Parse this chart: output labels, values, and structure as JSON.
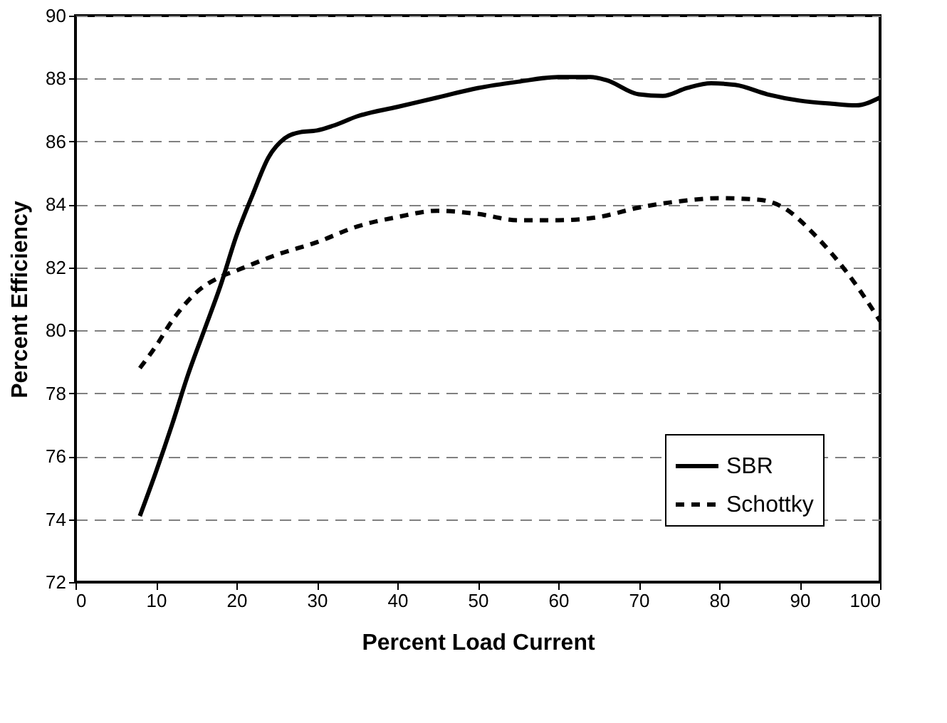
{
  "chart_data": {
    "type": "line",
    "xlabel": "Percent Load Current",
    "ylabel": "Percent Efficiency",
    "xlim": [
      0,
      100
    ],
    "xticks": [
      0,
      10,
      20,
      30,
      40,
      50,
      60,
      70,
      80,
      90,
      100
    ],
    "ylim": [
      72,
      90
    ],
    "yticks": [
      72,
      74,
      76,
      78,
      80,
      82,
      84,
      86,
      88,
      90
    ],
    "grid": "y",
    "legend": "bottom right",
    "marker": "none",
    "series": [
      {
        "name": "SBR",
        "color": "#000000",
        "line_style": "solid",
        "x": [
          8,
          10,
          12,
          14,
          16,
          18,
          20,
          22,
          24,
          26,
          28,
          30,
          32,
          35,
          40,
          45,
          50,
          55,
          60,
          64,
          66,
          70,
          73,
          76,
          79,
          82,
          86,
          90,
          94,
          97,
          100
        ],
        "values": [
          74.1,
          75.5,
          77,
          78.6,
          80,
          81.4,
          83,
          84.3,
          85.5,
          86.1,
          86.3,
          86.35,
          86.5,
          86.8,
          87.1,
          87.4,
          87.7,
          87.9,
          88.05,
          88.05,
          87.95,
          87.5,
          87.45,
          87.7,
          87.85,
          87.8,
          87.5,
          87.3,
          87.2,
          87.15,
          87.4
        ]
      },
      {
        "name": "Schottky",
        "color": "#000000",
        "line_style": "dashed",
        "x": [
          8,
          10,
          12,
          15,
          18,
          20,
          25,
          30,
          35,
          40,
          45,
          50,
          55,
          60,
          65,
          70,
          75,
          80,
          85,
          88,
          92,
          96,
          100
        ],
        "values": [
          78.8,
          79.5,
          80.3,
          81.2,
          81.7,
          81.9,
          82.4,
          82.8,
          83.3,
          83.6,
          83.8,
          83.7,
          83.5,
          83.5,
          83.6,
          83.9,
          84.1,
          84.2,
          84.15,
          83.9,
          83.0,
          81.8,
          80.3
        ]
      }
    ]
  }
}
